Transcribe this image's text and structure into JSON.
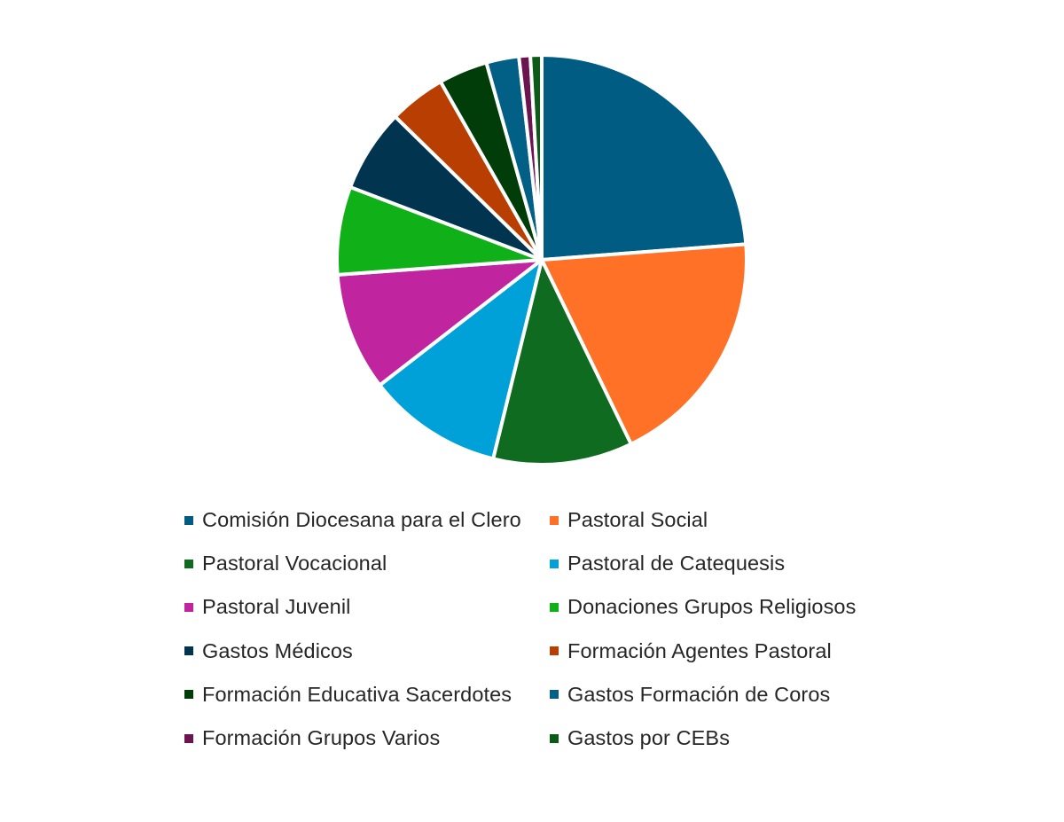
{
  "chart_data": {
    "type": "pie",
    "title": "",
    "legend_position": "bottom",
    "categories": [
      "Comisión Diocesana para el Clero",
      "Pastoral Social",
      "Pastoral Vocacional",
      "Pastoral de Catequesis",
      "Pastoral Juvenil",
      "Donaciones Grupos Religiosos",
      "Gastos Médicos",
      "Formación Agentes Pastoral",
      "Formación Educativa Sacerdotes",
      "Gastos Formación de Coros",
      "Formación Grupos Varios",
      "Gastos por CEBs"
    ],
    "values": [
      24.0,
      19.2,
      11.1,
      10.8,
      9.4,
      7.0,
      6.6,
      4.5,
      3.9,
      2.6,
      0.9,
      0.9
    ],
    "colors": [
      "#005C83",
      "#FF7127",
      "#0F6B1F",
      "#00A0D8",
      "#C0249F",
      "#10B019",
      "#00344F",
      "#B83E02",
      "#003D08",
      "#025F86",
      "#6C1450",
      "#0B5A18"
    ]
  }
}
